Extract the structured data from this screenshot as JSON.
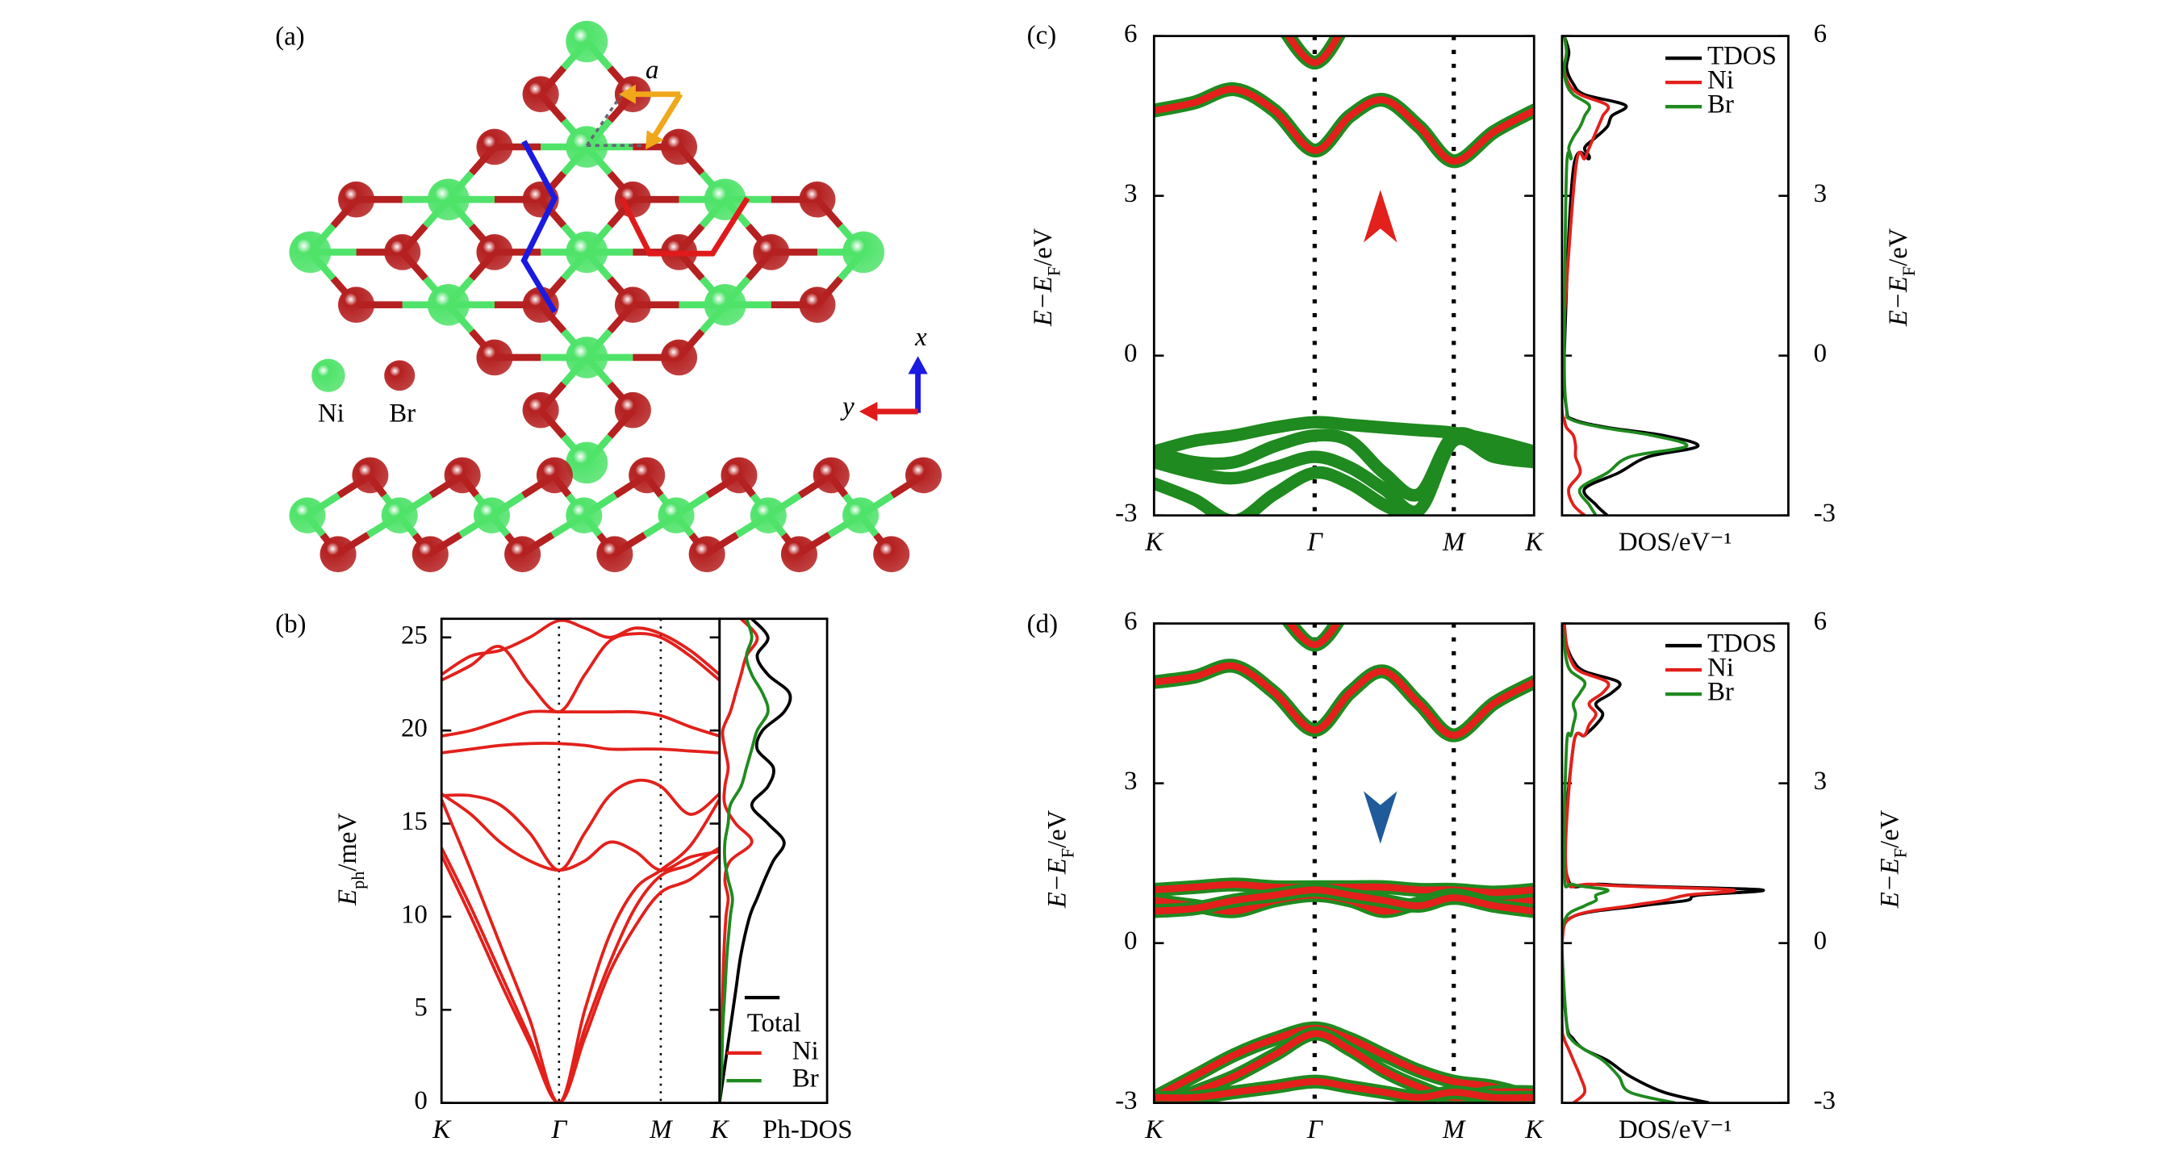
{
  "structure": {
    "label": "(a)",
    "lattice_label": "a",
    "axis_labels": {
      "x": "x",
      "y": "y"
    },
    "species": [
      {
        "name": "Ni",
        "color": "#4fe36a"
      },
      {
        "name": "Br",
        "color": "#b52020"
      }
    ]
  },
  "chart_data": [
    {
      "type": "line",
      "label": "(b)",
      "ylabel": {
        "main": "E",
        "sub": "ph",
        "unit": "/meV"
      },
      "x": [
        0,
        0.25,
        0.5,
        0.75,
        1,
        1.22,
        1.43,
        1.65,
        1.866,
        2.116,
        2.366
      ],
      "xlim": [
        0,
        2.366
      ],
      "xticks": [
        {
          "value": 0,
          "label": "K"
        },
        {
          "value": 1,
          "label": "Γ"
        },
        {
          "value": 1.866,
          "label": "M"
        },
        {
          "value": 2.366,
          "label": "K"
        }
      ],
      "ylim": [
        0,
        26
      ],
      "yticks": [
        0,
        5,
        10,
        15,
        20,
        25
      ],
      "series": [
        {
          "color": "#e3201b",
          "values": [
            13.3,
            10,
            6.5,
            3.2,
            0,
            3.5,
            7,
            9.5,
            11.3,
            12,
            13.3
          ]
        },
        {
          "color": "#e3201b",
          "values": [
            13.7,
            10.5,
            7,
            3.5,
            0,
            4,
            7.5,
            10.5,
            12.2,
            12.8,
            13.7
          ]
        },
        {
          "color": "#e3201b",
          "values": [
            16.3,
            12.5,
            8.5,
            4.5,
            0,
            5,
            9,
            11.5,
            12.5,
            13.8,
            16.3
          ]
        },
        {
          "color": "#e3201b",
          "values": [
            16.6,
            15.5,
            14,
            13,
            12.5,
            13,
            14,
            13.5,
            12.5,
            13.2,
            13.5
          ]
        },
        {
          "color": "#e3201b",
          "values": [
            16.5,
            16.5,
            16,
            14.5,
            12.5,
            14.5,
            16.5,
            17.3,
            17,
            15.5,
            16.6
          ]
        },
        {
          "color": "#e3201b",
          "values": [
            18.8,
            19,
            19.2,
            19.3,
            19.3,
            19.2,
            19,
            19,
            19,
            18.9,
            18.8
          ]
        },
        {
          "color": "#e3201b",
          "values": [
            19.7,
            20,
            20.5,
            21,
            21,
            21,
            21,
            21,
            20.8,
            20.2,
            19.7
          ]
        },
        {
          "color": "#e3201b",
          "values": [
            22.7,
            23.5,
            24.5,
            22.5,
            21,
            23,
            24.8,
            25.2,
            25,
            24,
            22.7
          ]
        },
        {
          "color": "#e3201b",
          "values": [
            23,
            24,
            24.3,
            25,
            25.9,
            25.5,
            25,
            25.5,
            25.2,
            24.3,
            23
          ]
        }
      ],
      "dos": {
        "xlabel": "Ph-DOS",
        "xlim": [
          0,
          1
        ],
        "legend": "lower right",
        "y": [
          0,
          2,
          4,
          6,
          8,
          10,
          11,
          12,
          13,
          14,
          15,
          16,
          17,
          18,
          19,
          20,
          21,
          22,
          23,
          24,
          25,
          26
        ],
        "series": [
          {
            "name": "Total",
            "color": "#000000",
            "values": [
              0,
              0.05,
              0.1,
              0.15,
              0.2,
              0.28,
              0.35,
              0.42,
              0.5,
              0.6,
              0.45,
              0.3,
              0.45,
              0.5,
              0.35,
              0.4,
              0.6,
              0.65,
              0.45,
              0.35,
              0.45,
              0.3
            ]
          },
          {
            "name": "Ni",
            "color": "#e3201b",
            "values": [
              0,
              0.01,
              0.02,
              0.03,
              0.04,
              0.06,
              0.08,
              0.05,
              0.1,
              0.3,
              0.15,
              0.05,
              0.05,
              0.08,
              0.05,
              0.03,
              0.1,
              0.15,
              0.2,
              0.25,
              0.35,
              0.2
            ]
          },
          {
            "name": "Br",
            "color": "#1f8a1f",
            "values": [
              0,
              0.02,
              0.03,
              0.05,
              0.07,
              0.1,
              0.12,
              0.08,
              0.05,
              0.05,
              0.08,
              0.1,
              0.2,
              0.25,
              0.3,
              0.35,
              0.45,
              0.4,
              0.3,
              0.25,
              0.3,
              0.25
            ]
          }
        ]
      }
    },
    {
      "type": "band",
      "label": "(c)",
      "spin": "up",
      "arrow_color": "#e3201b",
      "ylabel": {
        "main": "E−E",
        "sub": "F",
        "unit": "/eV"
      },
      "x": [
        0,
        0.25,
        0.5,
        0.75,
        1,
        1.22,
        1.43,
        1.65,
        1.866,
        2.116,
        2.366
      ],
      "xlim": [
        0,
        2.366
      ],
      "xticks": [
        {
          "value": 0,
          "label": "K"
        },
        {
          "value": 1,
          "label": "Γ"
        },
        {
          "value": 1.866,
          "label": "M"
        },
        {
          "value": 2.366,
          "label": "K"
        }
      ],
      "ylim": [
        -3,
        6
      ],
      "yticks": [
        -3,
        0,
        3,
        6
      ],
      "series": [
        {
          "color": "#e3201b",
          "edge_color": "#1f8a1f",
          "values": [
            4.6,
            4.75,
            5.0,
            4.6,
            3.85,
            4.5,
            4.8,
            4.3,
            3.65,
            4.2,
            4.6
          ]
        },
        {
          "color": "#e3201b",
          "edge_color": "#1f8a1f",
          "values": [
            null,
            null,
            null,
            6.4,
            5.5,
            6.4,
            null,
            null,
            null,
            null,
            null
          ]
        },
        {
          "color": "#1f8a1f",
          "values": [
            -1.8,
            -1.6,
            -1.5,
            -1.35,
            -1.25,
            -1.3,
            -1.35,
            -1.4,
            -1.45,
            -1.6,
            -1.8
          ]
        },
        {
          "color": "#1f8a1f",
          "values": [
            -1.8,
            -2.0,
            -2.0,
            -1.7,
            -1.5,
            -1.6,
            -2.2,
            -2.6,
            -1.5,
            -1.7,
            -1.85
          ]
        },
        {
          "color": "#1f8a1f",
          "values": [
            -2.0,
            -2.2,
            -2.3,
            -2.1,
            -1.9,
            -2.1,
            -2.5,
            -2.9,
            -1.6,
            -1.9,
            -2.0
          ]
        },
        {
          "color": "#1f8a1f",
          "values": [
            -2.4,
            -2.7,
            -3.1,
            -2.6,
            -2.2,
            -2.4,
            -2.8,
            -3.1,
            null,
            null,
            null
          ]
        }
      ],
      "dos": {
        "xlabel": "DOS/eV⁻¹",
        "xlim": [
          0,
          1
        ],
        "legend": "upper right",
        "y": [
          -3,
          -2.8,
          -2.5,
          -2.2,
          -1.9,
          -1.7,
          -1.5,
          -1.35,
          -1.2,
          -1.0,
          0,
          3.5,
          3.7,
          3.9,
          4.1,
          4.3,
          4.5,
          4.7,
          4.9,
          5.1,
          5.4,
          5.7,
          6
        ],
        "series": [
          {
            "name": "TDOS",
            "color": "#000000",
            "values": [
              0.2,
              0.15,
              0.1,
              0.25,
              0.38,
              0.6,
              0.45,
              0.2,
              0.05,
              0.02,
              0.01,
              0.05,
              0.12,
              0.1,
              0.15,
              0.2,
              0.22,
              0.28,
              0.1,
              0.05,
              0.02,
              0.03,
              0.01
            ]
          },
          {
            "name": "Ni",
            "color": "#e3201b",
            "values": [
              0.1,
              0.05,
              0.03,
              0.08,
              0.06,
              0.06,
              0.05,
              0.02,
              0.01,
              0,
              0,
              0.06,
              0.1,
              0.12,
              0.14,
              0.16,
              0.18,
              0.2,
              0.08,
              0.03,
              0.01,
              0.02,
              0.01
            ]
          },
          {
            "name": "Br",
            "color": "#1f8a1f",
            "values": [
              0.15,
              0.12,
              0.08,
              0.2,
              0.3,
              0.55,
              0.4,
              0.18,
              0.04,
              0.02,
              0.01,
              0.02,
              0.04,
              0.03,
              0.05,
              0.08,
              0.1,
              0.12,
              0.05,
              0.02,
              0.01,
              0.02,
              0.01
            ]
          }
        ]
      }
    },
    {
      "type": "band",
      "label": "(d)",
      "spin": "down",
      "arrow_color": "#1f5a9a",
      "ylabel": {
        "main": "E−E",
        "sub": "F",
        "unit": "/eV"
      },
      "x": [
        0,
        0.25,
        0.5,
        0.75,
        1,
        1.22,
        1.43,
        1.65,
        1.866,
        2.116,
        2.366
      ],
      "xlim": [
        0,
        2.366
      ],
      "xticks": [
        {
          "value": 0,
          "label": "K"
        },
        {
          "value": 1,
          "label": "Γ"
        },
        {
          "value": 1.866,
          "label": "M"
        },
        {
          "value": 2.366,
          "label": "K"
        }
      ],
      "ylim": [
        -3,
        6
      ],
      "yticks": [
        -3,
        0,
        3,
        6
      ],
      "series": [
        {
          "color": "#e3201b",
          "edge_color": "#1f8a1f",
          "values": [
            4.9,
            5.0,
            5.2,
            4.7,
            4.0,
            4.7,
            5.1,
            4.5,
            3.9,
            4.5,
            4.9
          ]
        },
        {
          "color": "#e3201b",
          "edge_color": "#1f8a1f",
          "values": [
            null,
            null,
            null,
            6.4,
            5.6,
            6.4,
            null,
            null,
            null,
            null,
            null
          ]
        },
        {
          "color": "#e3201b",
          "edge_color": "#1f8a1f",
          "values": [
            1.0,
            1.05,
            1.1,
            1.05,
            1.05,
            1.05,
            1.05,
            1.0,
            1.0,
            0.95,
            1.0
          ]
        },
        {
          "color": "#e3201b",
          "edge_color": "#1f8a1f",
          "values": [
            0.8,
            0.7,
            0.6,
            0.8,
            0.9,
            0.8,
            0.6,
            0.75,
            0.9,
            0.75,
            0.8
          ]
        },
        {
          "color": "#e3201b",
          "edge_color": "#1f8a1f",
          "values": [
            0.6,
            0.65,
            0.8,
            0.9,
            1.0,
            0.9,
            0.8,
            0.7,
            0.85,
            0.7,
            0.6
          ]
        },
        {
          "color": "#e3201b",
          "edge_color": "#1f8a1f",
          "values": [
            -2.9,
            -2.5,
            -2.1,
            -1.8,
            -1.6,
            -1.8,
            -2.1,
            -2.4,
            -2.6,
            -2.7,
            -2.9
          ]
        },
        {
          "color": "#e3201b",
          "edge_color": "#1f8a1f",
          "values": [
            -3.1,
            -2.8,
            -2.5,
            -2.1,
            -1.7,
            -2.0,
            -2.4,
            -2.7,
            -2.9,
            -2.8,
            -2.8
          ]
        },
        {
          "color": "#e3201b",
          "edge_color": "#1f8a1f",
          "values": [
            -2.9,
            -2.9,
            -2.8,
            -2.7,
            -2.6,
            -2.7,
            -2.8,
            -2.9,
            -2.8,
            -2.9,
            -2.9
          ]
        }
      ],
      "dos": {
        "xlabel": "DOS/eV⁻¹",
        "xlim": [
          0,
          1
        ],
        "legend": "upper right",
        "y": [
          -3,
          -2.8,
          -2.5,
          -2.2,
          -2.0,
          -1.8,
          -1.5,
          0,
          0.5,
          0.7,
          0.8,
          0.9,
          1.0,
          1.1,
          1.3,
          3.7,
          3.9,
          4.1,
          4.3,
          4.5,
          4.7,
          4.9,
          5.1,
          5.3,
          5.6,
          6
        ],
        "series": [
          {
            "name": "TDOS",
            "color": "#000000",
            "values": [
              0.65,
              0.45,
              0.3,
              0.2,
              0.1,
              0.05,
              0.02,
              0,
              0.05,
              0.35,
              0.55,
              0.6,
              0.88,
              0.2,
              0.02,
              0.05,
              0.1,
              0.15,
              0.18,
              0.15,
              0.22,
              0.25,
              0.1,
              0.05,
              0.02,
              0.01
            ]
          },
          {
            "name": "Ni",
            "color": "#e3201b",
            "values": [
              0.05,
              0.1,
              0.08,
              0.05,
              0.03,
              0.01,
              0,
              0,
              0.05,
              0.3,
              0.45,
              0.55,
              0.75,
              0.15,
              0.02,
              0.05,
              0.1,
              0.12,
              0.15,
              0.12,
              0.18,
              0.2,
              0.08,
              0.04,
              0.02,
              0.01
            ]
          },
          {
            "name": "Br",
            "color": "#1f8a1f",
            "values": [
              0.5,
              0.3,
              0.25,
              0.18,
              0.1,
              0.04,
              0.02,
              0,
              0.02,
              0.1,
              0.15,
              0.15,
              0.2,
              0.05,
              0.01,
              0.02,
              0.04,
              0.05,
              0.06,
              0.05,
              0.08,
              0.1,
              0.04,
              0.02,
              0.01,
              0
            ]
          }
        ]
      }
    }
  ]
}
